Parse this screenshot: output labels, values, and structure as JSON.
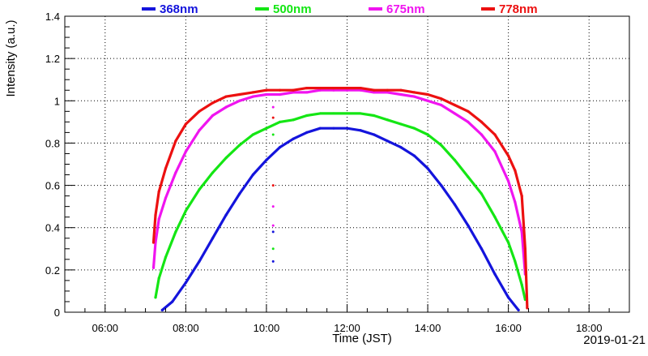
{
  "chart_data": {
    "type": "scatter",
    "title": "",
    "xlabel": "Time (JST)",
    "ylabel": "Intensity (a.u.)",
    "date_label": "2019-01-21",
    "xlim": [
      "05:00",
      "19:00"
    ],
    "ylim": [
      0,
      1.4
    ],
    "x_ticks": [
      "06:00",
      "08:00",
      "10:00",
      "12:00",
      "14:00",
      "16:00",
      "18:00"
    ],
    "y_ticks": [
      "0",
      "0.2",
      "0.4",
      "0.6",
      "0.8",
      "1",
      "1.2",
      "1.4"
    ],
    "grid": true,
    "legend_position": "top",
    "series": [
      {
        "name": "368nm",
        "color": "#1414dc",
        "points": [
          [
            "07:25",
            0.01
          ],
          [
            "07:40",
            0.05
          ],
          [
            "08:00",
            0.14
          ],
          [
            "08:20",
            0.24
          ],
          [
            "08:40",
            0.35
          ],
          [
            "09:00",
            0.46
          ],
          [
            "09:20",
            0.56
          ],
          [
            "09:40",
            0.65
          ],
          [
            "10:00",
            0.72
          ],
          [
            "10:20",
            0.78
          ],
          [
            "10:40",
            0.82
          ],
          [
            "11:00",
            0.85
          ],
          [
            "11:20",
            0.87
          ],
          [
            "11:40",
            0.87
          ],
          [
            "12:00",
            0.87
          ],
          [
            "12:20",
            0.86
          ],
          [
            "12:40",
            0.84
          ],
          [
            "13:00",
            0.81
          ],
          [
            "13:20",
            0.78
          ],
          [
            "13:40",
            0.74
          ],
          [
            "14:00",
            0.68
          ],
          [
            "14:20",
            0.6
          ],
          [
            "14:40",
            0.51
          ],
          [
            "15:00",
            0.41
          ],
          [
            "15:20",
            0.3
          ],
          [
            "15:40",
            0.18
          ],
          [
            "16:00",
            0.07
          ],
          [
            "16:15",
            0.01
          ]
        ]
      },
      {
        "name": "500nm",
        "color": "#14e614",
        "points": [
          [
            "07:15",
            0.07
          ],
          [
            "07:20",
            0.16
          ],
          [
            "07:30",
            0.26
          ],
          [
            "07:45",
            0.38
          ],
          [
            "08:00",
            0.48
          ],
          [
            "08:20",
            0.58
          ],
          [
            "08:40",
            0.66
          ],
          [
            "09:00",
            0.73
          ],
          [
            "09:20",
            0.79
          ],
          [
            "09:40",
            0.84
          ],
          [
            "10:00",
            0.87
          ],
          [
            "10:20",
            0.9
          ],
          [
            "10:40",
            0.91
          ],
          [
            "11:00",
            0.93
          ],
          [
            "11:20",
            0.94
          ],
          [
            "11:40",
            0.94
          ],
          [
            "12:00",
            0.94
          ],
          [
            "12:20",
            0.94
          ],
          [
            "12:40",
            0.93
          ],
          [
            "13:00",
            0.91
          ],
          [
            "13:20",
            0.89
          ],
          [
            "13:40",
            0.87
          ],
          [
            "14:00",
            0.84
          ],
          [
            "14:20",
            0.79
          ],
          [
            "14:40",
            0.72
          ],
          [
            "15:00",
            0.64
          ],
          [
            "15:20",
            0.56
          ],
          [
            "15:40",
            0.45
          ],
          [
            "16:00",
            0.33
          ],
          [
            "16:10",
            0.24
          ],
          [
            "16:20",
            0.13
          ],
          [
            "16:25",
            0.06
          ]
        ]
      },
      {
        "name": "675nm",
        "color": "#f014f0",
        "points": [
          [
            "07:12",
            0.21
          ],
          [
            "07:15",
            0.33
          ],
          [
            "07:20",
            0.44
          ],
          [
            "07:30",
            0.54
          ],
          [
            "07:45",
            0.66
          ],
          [
            "08:00",
            0.76
          ],
          [
            "08:20",
            0.86
          ],
          [
            "08:40",
            0.93
          ],
          [
            "09:00",
            0.97
          ],
          [
            "09:20",
            1.0
          ],
          [
            "09:40",
            1.02
          ],
          [
            "10:00",
            1.03
          ],
          [
            "10:20",
            1.03
          ],
          [
            "10:40",
            1.04
          ],
          [
            "11:00",
            1.04
          ],
          [
            "11:20",
            1.05
          ],
          [
            "11:40",
            1.05
          ],
          [
            "12:00",
            1.05
          ],
          [
            "12:20",
            1.05
          ],
          [
            "12:40",
            1.04
          ],
          [
            "13:00",
            1.04
          ],
          [
            "13:20",
            1.03
          ],
          [
            "13:40",
            1.02
          ],
          [
            "14:00",
            1.0
          ],
          [
            "14:20",
            0.98
          ],
          [
            "14:40",
            0.94
          ],
          [
            "15:00",
            0.9
          ],
          [
            "15:20",
            0.84
          ],
          [
            "15:40",
            0.76
          ],
          [
            "16:00",
            0.62
          ],
          [
            "16:10",
            0.52
          ],
          [
            "16:20",
            0.38
          ],
          [
            "16:25",
            0.18
          ]
        ]
      },
      {
        "name": "778nm",
        "color": "#ec1010",
        "points": [
          [
            "07:12",
            0.33
          ],
          [
            "07:15",
            0.46
          ],
          [
            "07:20",
            0.57
          ],
          [
            "07:30",
            0.68
          ],
          [
            "07:45",
            0.81
          ],
          [
            "08:00",
            0.89
          ],
          [
            "08:20",
            0.95
          ],
          [
            "08:40",
            0.99
          ],
          [
            "09:00",
            1.02
          ],
          [
            "09:20",
            1.03
          ],
          [
            "09:40",
            1.04
          ],
          [
            "10:00",
            1.05
          ],
          [
            "10:20",
            1.05
          ],
          [
            "10:40",
            1.05
          ],
          [
            "11:00",
            1.06
          ],
          [
            "11:20",
            1.06
          ],
          [
            "11:40",
            1.06
          ],
          [
            "12:00",
            1.06
          ],
          [
            "12:20",
            1.06
          ],
          [
            "12:40",
            1.05
          ],
          [
            "13:00",
            1.05
          ],
          [
            "13:20",
            1.05
          ],
          [
            "13:40",
            1.04
          ],
          [
            "14:00",
            1.03
          ],
          [
            "14:20",
            1.01
          ],
          [
            "14:40",
            0.98
          ],
          [
            "15:00",
            0.95
          ],
          [
            "15:20",
            0.9
          ],
          [
            "15:40",
            0.84
          ],
          [
            "16:00",
            0.74
          ],
          [
            "16:10",
            0.67
          ],
          [
            "16:20",
            0.55
          ],
          [
            "16:25",
            0.3
          ],
          [
            "16:28",
            0.02
          ]
        ]
      }
    ],
    "outliers": [
      {
        "x": "10:10",
        "y": 0.97,
        "color": "#f014f0"
      },
      {
        "x": "10:10",
        "y": 0.92,
        "color": "#ec1010"
      },
      {
        "x": "10:10",
        "y": 0.84,
        "color": "#14e614"
      },
      {
        "x": "10:10",
        "y": 0.6,
        "color": "#ec1010"
      },
      {
        "x": "10:10",
        "y": 0.5,
        "color": "#f014f0"
      },
      {
        "x": "10:10",
        "y": 0.41,
        "color": "#f014f0"
      },
      {
        "x": "10:10",
        "y": 0.38,
        "color": "#1414dc"
      },
      {
        "x": "10:10",
        "y": 0.3,
        "color": "#14e614"
      },
      {
        "x": "10:10",
        "y": 0.24,
        "color": "#1414dc"
      }
    ]
  }
}
